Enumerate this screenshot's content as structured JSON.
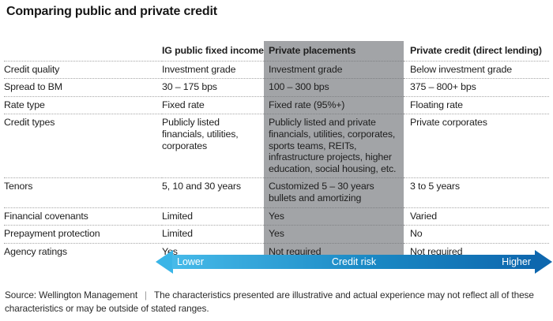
{
  "chart_data": {
    "type": "table",
    "title": "Comparing public and private credit",
    "columns": {
      "label": "",
      "public": "IG public fixed income",
      "placements": "Private placements",
      "direct": "Private credit (direct lending)"
    },
    "highlighted_column": "Private placements",
    "rows": [
      {
        "label": "Credit quality",
        "public": "Investment grade",
        "placements": "Investment grade",
        "direct": "Below investment grade"
      },
      {
        "label": "Spread to BM",
        "public": "30 – 175 bps",
        "placements": "100 – 300 bps",
        "direct": "375 – 800+ bps"
      },
      {
        "label": "Rate type",
        "public": "Fixed rate",
        "placements": "Fixed rate (95%+)",
        "direct": "Floating rate"
      },
      {
        "label": "Credit types",
        "public": "Publicly listed financials, utilities, corporates",
        "placements": "Publicly listed and private financials, utilities, corporates, sports teams, REITs, infrastructure projects, higher education, social housing, etc.",
        "direct": "Private corporates"
      },
      {
        "label": "Tenors",
        "public": "5, 10 and 30 years",
        "placements": "Customized 5 – 30 years bullets and amortizing",
        "direct": "3 to 5 years"
      },
      {
        "label": "Financial covenants",
        "public": "Limited",
        "placements": "Yes",
        "direct": "Varied"
      },
      {
        "label": "Prepayment protection",
        "public": "Limited",
        "placements": "Yes",
        "direct": "No"
      },
      {
        "label": "Agency ratings",
        "public": "Yes",
        "placements": "Not required",
        "direct": "Not required"
      }
    ],
    "risk_axis": {
      "low_label": "Lower",
      "center_label": "Credit risk",
      "high_label": "Higher"
    },
    "footer": {
      "source": "Source: Wellington Management",
      "separator": "|",
      "note": "The characteristics presented are illustrative and actual experience may not reflect all of these characteristics or may be outside of stated ranges."
    }
  },
  "colors": {
    "highlight_column_bg": "#a2a4a7",
    "arrow_gradient_start": "#46bae9",
    "arrow_gradient_end": "#0e67ae",
    "text": "#1e1e1e"
  }
}
